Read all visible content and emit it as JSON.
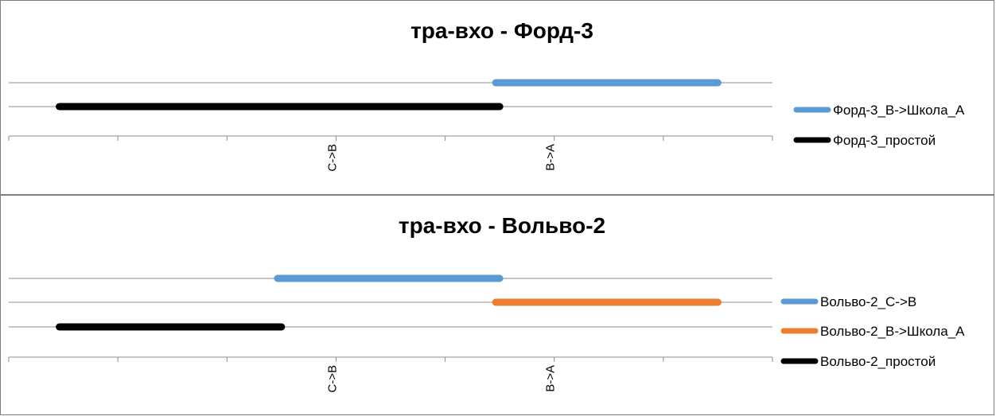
{
  "chart_data": [
    {
      "type": "gantt",
      "title": "тра-вхо - Форд-3",
      "x_tick_labels": [
        "",
        "",
        "",
        "С->В",
        "",
        "В->А",
        "",
        ""
      ],
      "y_rows": 2,
      "series": [
        {
          "name": "Форд-3_В->Школа_А",
          "color": "#5b9bd5",
          "segments": [
            {
              "row": 1,
              "start": 4.5,
              "end": 6.5
            }
          ]
        },
        {
          "name": "Форд-3_простой",
          "color": "#000000",
          "segments": [
            {
              "row": 0,
              "start": 0.5,
              "end": 4.5
            }
          ]
        }
      ],
      "grid": true,
      "legend_position": "right"
    },
    {
      "type": "gantt",
      "title": "тра-вхо - Вольво-2",
      "x_tick_labels": [
        "",
        "",
        "",
        "С->В",
        "",
        "В->А",
        "",
        ""
      ],
      "y_rows": 3,
      "series": [
        {
          "name": "Вольво-2_С->В",
          "color": "#5b9bd5",
          "segments": [
            {
              "row": 2,
              "start": 2.5,
              "end": 4.5
            }
          ]
        },
        {
          "name": "Вольво-2_В->Школа_А",
          "color": "#ed7d31",
          "segments": [
            {
              "row": 1,
              "start": 4.5,
              "end": 6.5
            }
          ]
        },
        {
          "name": "Вольво-2_простой",
          "color": "#000000",
          "segments": [
            {
              "row": 0,
              "start": 0.5,
              "end": 2.5
            }
          ]
        }
      ],
      "grid": true,
      "legend_position": "right"
    }
  ]
}
